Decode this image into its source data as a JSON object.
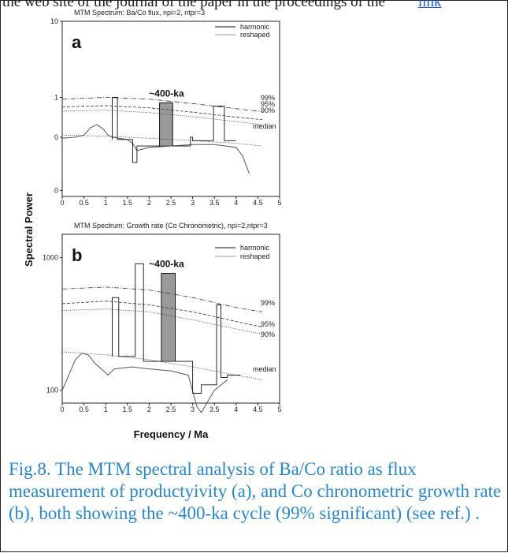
{
  "header": {
    "text": "the web site of the journal of the paper in the proceedings of the",
    "link": "link"
  },
  "caption": "Fig.8. The MTM spectral analysis of Ba/Co ratio as flux measurement of productyivity (a), and Co chronometric growth rate (b), both showing the ~400-ka cycle (99% significant) (see ref.) .",
  "shared": {
    "ylabel": "Spectral Power",
    "xlabel": "Frequency / Ma"
  },
  "chart_data": [
    {
      "type": "line",
      "panel_letter": "a",
      "title": "MTM Spectrum:  Ba/Co  flux, npi=2, ntpr=3",
      "yscale": "log",
      "ylim": [
        0.05,
        10
      ],
      "xlim": [
        0,
        5
      ],
      "x_ticks": [
        "0",
        "0.5",
        "1",
        "1.5",
        "2",
        "2.5",
        "3",
        "3.5",
        "4",
        "4.5",
        "5"
      ],
      "y_ticks": [
        {
          "v": 10,
          "label": "10"
        },
        {
          "v": 1,
          "label": "1"
        },
        {
          "v": 0.3,
          "label": "0"
        },
        {
          "v": 0.06,
          "label": "0"
        }
      ],
      "legend": [
        "harmonic",
        "reshaped"
      ],
      "legend_position": "top-right",
      "annotation": {
        "text": "~400-ka",
        "x": 2.4
      },
      "band": {
        "x0": 2.24,
        "x1": 2.54,
        "y": 0.85
      },
      "harmonic": {
        "x": [
          1.15,
          1.15,
          1.27,
          1.27,
          1.62,
          1.62,
          1.72,
          1.72,
          2.24,
          2.24,
          2.54,
          2.54,
          2.95,
          2.95,
          3.0,
          3.0,
          3.48,
          3.48,
          3.73,
          3.73,
          4.0
        ],
        "y": [
          0.28,
          1.0,
          1.0,
          0.28,
          0.28,
          0.14,
          0.14,
          0.23,
          0.23,
          0.85,
          0.85,
          0.23,
          0.23,
          0.3,
          0.3,
          0.27,
          0.27,
          0.77,
          0.77,
          0.27,
          0.27
        ]
      },
      "reshaped": {
        "x": [
          0,
          0.3,
          0.5,
          0.65,
          0.8,
          0.95,
          1.05,
          1.15,
          1.3,
          1.5,
          1.62,
          1.72,
          2.0,
          2.5,
          3.0,
          3.5,
          4.0,
          4.15,
          4.3
        ],
        "y": [
          0.29,
          0.3,
          0.32,
          0.4,
          0.44,
          0.38,
          0.32,
          0.3,
          0.29,
          0.28,
          0.25,
          0.2,
          0.22,
          0.23,
          0.24,
          0.24,
          0.22,
          0.17,
          0.1
        ]
      },
      "confidence": [
        {
          "label": "99%",
          "x": [
            0,
            1,
            2,
            3,
            4,
            4.6
          ],
          "y": [
            0.95,
            1.0,
            0.95,
            0.83,
            0.71,
            0.65
          ]
        },
        {
          "label": "95%",
          "x": [
            0,
            1,
            2,
            3,
            4,
            4.6
          ],
          "y": [
            0.75,
            0.78,
            0.73,
            0.64,
            0.55,
            0.51
          ]
        },
        {
          "label": "90%",
          "x": [
            0,
            1,
            2,
            3,
            4,
            4.6
          ],
          "y": [
            0.66,
            0.68,
            0.63,
            0.56,
            0.48,
            0.44
          ]
        },
        {
          "label": "median",
          "x": [
            0,
            1,
            2,
            3,
            4,
            4.6
          ],
          "y": [
            0.32,
            0.31,
            0.29,
            0.27,
            0.25,
            0.23
          ]
        }
      ]
    },
    {
      "type": "line",
      "panel_letter": "b",
      "title": "MTM Spectrum:  Growth rate (Co Chronometric),  npi=2,ntpr=3",
      "yscale": "log",
      "ylim": [
        80,
        1500
      ],
      "xlim": [
        0,
        5
      ],
      "x_ticks": [
        "0",
        "0.5",
        "1",
        "1.5",
        "2",
        "2.5",
        "3",
        "3.5",
        "4",
        "4.5",
        "5"
      ],
      "y_ticks": [
        {
          "v": 1000,
          "label": "1000"
        },
        {
          "v": 100,
          "label": "100"
        }
      ],
      "legend": [
        "harmonic",
        "reshaped"
      ],
      "legend_position": "top-right",
      "annotation": {
        "text": "~400-ka",
        "x": 2.4
      },
      "band": {
        "x0": 2.28,
        "x1": 2.6,
        "y": 760
      },
      "harmonic": {
        "x": [
          1.15,
          1.15,
          1.3,
          1.3,
          1.68,
          1.68,
          1.87,
          1.87,
          2.28,
          2.28,
          2.6,
          2.6,
          3.0,
          3.0,
          3.2,
          3.2,
          3.55,
          3.55,
          3.65,
          3.65,
          3.8,
          3.8,
          4.1
        ],
        "y": [
          180,
          500,
          500,
          180,
          180,
          900,
          900,
          165,
          165,
          760,
          760,
          165,
          165,
          95,
          95,
          110,
          110,
          440,
          440,
          125,
          125,
          130,
          130
        ]
      },
      "reshaped": {
        "x": [
          0,
          0.15,
          0.3,
          0.45,
          0.6,
          0.75,
          0.95,
          1.05,
          1.2,
          1.6,
          2.0,
          2.5,
          2.9,
          3.1,
          3.2,
          3.5,
          3.8
        ],
        "y": [
          100,
          130,
          170,
          190,
          185,
          160,
          140,
          130,
          145,
          150,
          145,
          140,
          130,
          75,
          68,
          100,
          120
        ]
      },
      "confidence": [
        {
          "label": "99%",
          "x": [
            0,
            1,
            2,
            3,
            4,
            4.6
          ],
          "y": [
            580,
            600,
            570,
            500,
            420,
            390
          ]
        },
        {
          "label": "95%",
          "x": [
            0,
            1,
            2,
            3,
            4,
            4.6
          ],
          "y": [
            450,
            470,
            440,
            390,
            330,
            300
          ]
        },
        {
          "label": "90%",
          "x": [
            0,
            1,
            2,
            3,
            4,
            4.6
          ],
          "y": [
            400,
            410,
            390,
            340,
            290,
            265
          ]
        },
        {
          "label": "median",
          "x": [
            0,
            1,
            2,
            3,
            4,
            4.6
          ],
          "y": [
            195,
            185,
            170,
            150,
            130,
            120
          ]
        }
      ]
    }
  ]
}
